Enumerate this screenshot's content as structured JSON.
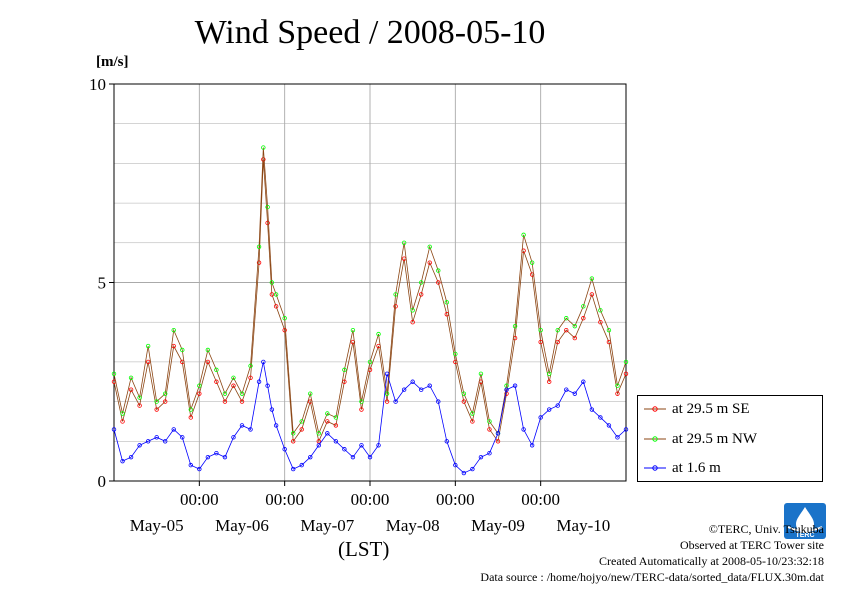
{
  "title": "Wind Speed / 2008-05-10",
  "unit": "[m/s]",
  "xaxis_label": "(LST)",
  "credits": [
    "©TERC, Univ. Tsukuba",
    "Observed at TERC Tower site",
    "Created Automatically at 2008-05-10/23:32:18",
    "Data source : /home/hojyo/new/TERC-data/sorted_data/FLUX.30m.dat"
  ],
  "logo_text": "TERC",
  "colors": {
    "se": "#ff0000",
    "nw": "#00ff00",
    "low": "#0000ff",
    "line": "#8b4513",
    "grid": "#aaaaaa"
  },
  "chart_data": {
    "type": "line",
    "title": "Wind Speed / 2008-05-10",
    "ylabel": "[m/s]",
    "xlabel": "(LST)",
    "ylim": [
      0,
      10
    ],
    "xlim_days": [
      0,
      6
    ],
    "yticks": [
      "0",
      "5",
      "10"
    ],
    "time_ticks": [
      {
        "day": 1,
        "label": "00:00"
      },
      {
        "day": 2,
        "label": "00:00"
      },
      {
        "day": 3,
        "label": "00:00"
      },
      {
        "day": 4,
        "label": "00:00"
      },
      {
        "day": 5,
        "label": "00:00"
      }
    ],
    "date_ticks": [
      {
        "day": 0.5,
        "label": "May-05"
      },
      {
        "day": 1.5,
        "label": "May-06"
      },
      {
        "day": 2.5,
        "label": "May-07"
      },
      {
        "day": 3.5,
        "label": "May-08"
      },
      {
        "day": 4.5,
        "label": "May-09"
      },
      {
        "day": 5.5,
        "label": "May-10"
      }
    ],
    "legend_position": "right",
    "grid": true,
    "series": [
      {
        "name": "at 29.5 m SE",
        "color": "#ff0000",
        "x": [
          0.0,
          0.1,
          0.2,
          0.3,
          0.4,
          0.5,
          0.6,
          0.7,
          0.8,
          0.9,
          1.0,
          1.1,
          1.2,
          1.3,
          1.4,
          1.5,
          1.6,
          1.7,
          1.75,
          1.8,
          1.85,
          1.9,
          2.0,
          2.1,
          2.2,
          2.3,
          2.4,
          2.5,
          2.6,
          2.7,
          2.8,
          2.9,
          3.0,
          3.1,
          3.2,
          3.3,
          3.4,
          3.5,
          3.6,
          3.7,
          3.8,
          3.9,
          4.0,
          4.1,
          4.2,
          4.3,
          4.4,
          4.5,
          4.6,
          4.7,
          4.8,
          4.9,
          5.0,
          5.1,
          5.2,
          5.3,
          5.4,
          5.5,
          5.6,
          5.7,
          5.8,
          5.9,
          6.0
        ],
        "y": [
          2.5,
          1.5,
          2.3,
          1.9,
          3.0,
          1.8,
          2.0,
          3.4,
          3.0,
          1.6,
          2.2,
          3.0,
          2.5,
          2.0,
          2.4,
          2.0,
          2.6,
          5.5,
          8.1,
          6.5,
          4.7,
          4.4,
          3.8,
          1.0,
          1.3,
          2.0,
          1.0,
          1.5,
          1.4,
          2.5,
          3.5,
          1.8,
          2.8,
          3.4,
          2.0,
          4.4,
          5.6,
          4.0,
          4.7,
          5.5,
          5.0,
          4.2,
          3.0,
          2.0,
          1.5,
          2.5,
          1.3,
          1.0,
          2.2,
          3.6,
          5.8,
          5.2,
          3.5,
          2.5,
          3.5,
          3.8,
          3.6,
          4.1,
          4.7,
          4.0,
          3.5,
          2.2,
          2.7
        ]
      },
      {
        "name": "at 29.5 m NW",
        "color": "#00ff00",
        "x": [
          0.0,
          0.1,
          0.2,
          0.3,
          0.4,
          0.5,
          0.6,
          0.7,
          0.8,
          0.9,
          1.0,
          1.1,
          1.2,
          1.3,
          1.4,
          1.5,
          1.6,
          1.7,
          1.75,
          1.8,
          1.85,
          1.9,
          2.0,
          2.1,
          2.2,
          2.3,
          2.4,
          2.5,
          2.6,
          2.7,
          2.8,
          2.9,
          3.0,
          3.1,
          3.2,
          3.3,
          3.4,
          3.5,
          3.6,
          3.7,
          3.8,
          3.9,
          4.0,
          4.1,
          4.2,
          4.3,
          4.4,
          4.5,
          4.6,
          4.7,
          4.8,
          4.9,
          5.0,
          5.1,
          5.2,
          5.3,
          5.4,
          5.5,
          5.6,
          5.7,
          5.8,
          5.9,
          6.0
        ],
        "y": [
          2.7,
          1.7,
          2.6,
          2.1,
          3.4,
          2.0,
          2.2,
          3.8,
          3.3,
          1.8,
          2.4,
          3.3,
          2.8,
          2.2,
          2.6,
          2.2,
          2.9,
          5.9,
          8.4,
          6.9,
          5.0,
          4.7,
          4.1,
          1.2,
          1.5,
          2.2,
          1.2,
          1.7,
          1.6,
          2.8,
          3.8,
          2.0,
          3.0,
          3.7,
          2.2,
          4.7,
          6.0,
          4.3,
          5.0,
          5.9,
          5.3,
          4.5,
          3.2,
          2.2,
          1.7,
          2.7,
          1.5,
          1.2,
          2.4,
          3.9,
          6.2,
          5.5,
          3.8,
          2.7,
          3.8,
          4.1,
          3.9,
          4.4,
          5.1,
          4.3,
          3.8,
          2.4,
          3.0
        ]
      },
      {
        "name": "at 1.6 m",
        "color": "#0000ff",
        "x": [
          0.0,
          0.1,
          0.2,
          0.3,
          0.4,
          0.5,
          0.6,
          0.7,
          0.8,
          0.9,
          1.0,
          1.1,
          1.2,
          1.3,
          1.4,
          1.5,
          1.6,
          1.7,
          1.75,
          1.8,
          1.85,
          1.9,
          2.0,
          2.1,
          2.2,
          2.3,
          2.4,
          2.5,
          2.6,
          2.7,
          2.8,
          2.9,
          3.0,
          3.1,
          3.2,
          3.3,
          3.4,
          3.5,
          3.6,
          3.7,
          3.8,
          3.9,
          4.0,
          4.1,
          4.2,
          4.3,
          4.4,
          4.5,
          4.6,
          4.7,
          4.8,
          4.9,
          5.0,
          5.1,
          5.2,
          5.3,
          5.4,
          5.5,
          5.6,
          5.7,
          5.8,
          5.9,
          6.0
        ],
        "y": [
          1.3,
          0.5,
          0.6,
          0.9,
          1.0,
          1.1,
          1.0,
          1.3,
          1.1,
          0.4,
          0.3,
          0.6,
          0.7,
          0.6,
          1.1,
          1.4,
          1.3,
          2.5,
          3.0,
          2.4,
          1.8,
          1.4,
          0.8,
          0.3,
          0.4,
          0.6,
          0.9,
          1.2,
          1.0,
          0.8,
          0.6,
          0.9,
          0.6,
          0.9,
          2.7,
          2.0,
          2.3,
          2.5,
          2.3,
          2.4,
          2.0,
          1.0,
          0.4,
          0.2,
          0.3,
          0.6,
          0.7,
          1.2,
          2.3,
          2.4,
          1.3,
          0.9,
          1.6,
          1.8,
          1.9,
          2.3,
          2.2,
          2.5,
          1.8,
          1.6,
          1.4,
          1.1,
          1.3
        ]
      }
    ]
  }
}
